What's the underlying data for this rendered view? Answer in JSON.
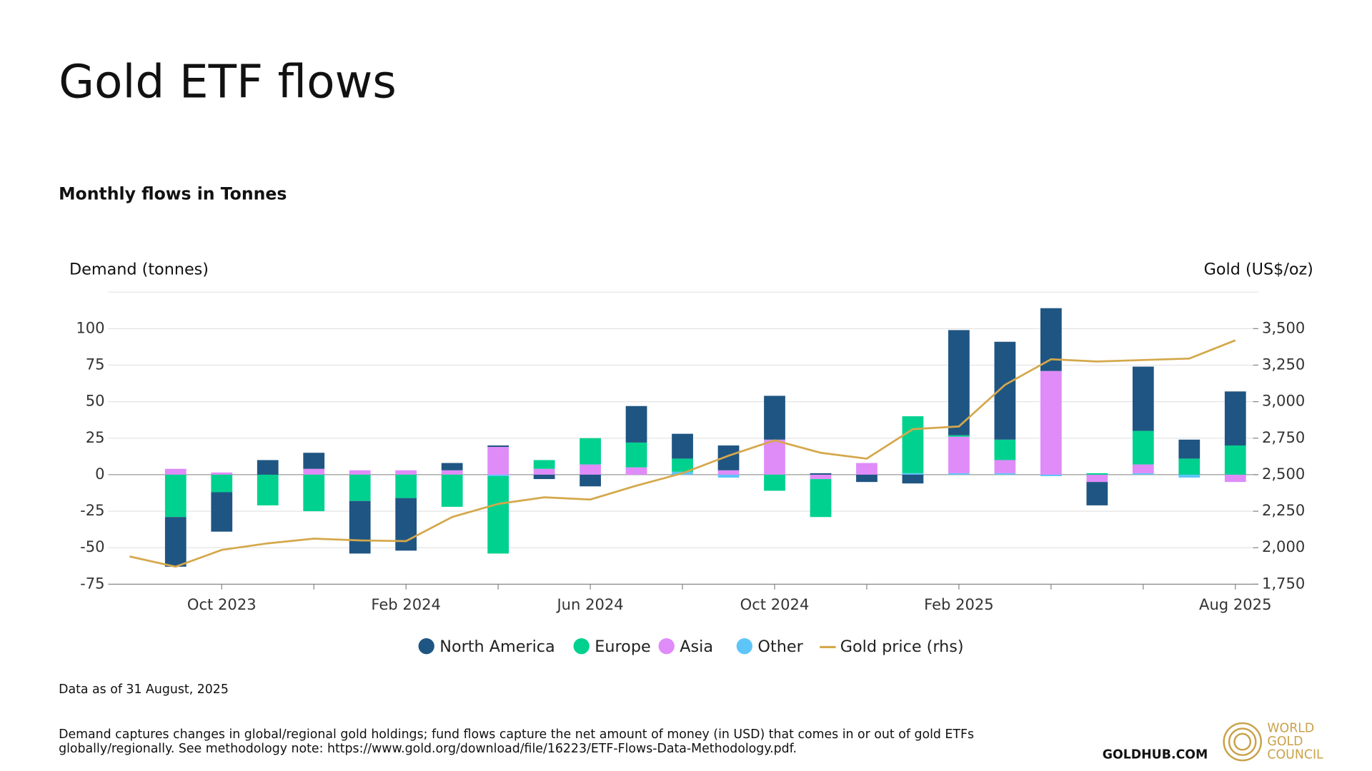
{
  "chart_data": {
    "type": "bar",
    "stacked": true,
    "title": "Gold ETF flows",
    "subtitle": "Monthly flows in Tonnes",
    "ylabel": "Demand (tonnes)",
    "y2label": "Gold (US$/oz)",
    "categories": [
      null,
      null,
      "Oct 2023",
      null,
      null,
      null,
      "Feb 2024",
      null,
      null,
      null,
      "Jun 2024",
      null,
      null,
      null,
      "Oct 2024",
      null,
      null,
      null,
      "Feb 2025",
      null,
      null,
      null,
      null,
      null,
      "Aug 2025"
    ],
    "series": [
      {
        "name": "North America",
        "color": "#1f5582",
        "values": [
          null,
          -34,
          -27,
          10,
          11,
          -36,
          -36,
          5,
          1,
          -3,
          -8,
          25,
          17,
          17,
          30,
          1,
          -5,
          -6,
          72,
          67,
          43,
          -16,
          44,
          13,
          37
        ]
      },
      {
        "name": "Europe",
        "color": "#00d18f",
        "values": [
          null,
          -29,
          -12,
          -21,
          -25,
          -18,
          -16,
          -22,
          -53,
          6,
          18,
          17,
          9,
          0,
          -11,
          -26,
          0,
          39,
          1,
          14,
          0,
          1,
          23,
          11,
          20
        ]
      },
      {
        "name": "Asia",
        "color": "#df8cf9",
        "values": [
          null,
          4,
          1.5,
          0,
          4,
          3,
          3,
          3,
          19,
          4,
          7,
          5,
          0,
          3,
          24,
          -3,
          8,
          0,
          25,
          9,
          71,
          -5,
          6,
          0,
          -5
        ]
      },
      {
        "name": "Other",
        "color": "#5ec5f9",
        "values": [
          null,
          0,
          0,
          0,
          0,
          0,
          0,
          0,
          -1,
          0,
          0,
          0,
          2,
          -2,
          0,
          0,
          0,
          1,
          1,
          1,
          -1,
          0,
          1,
          -2,
          0
        ]
      },
      {
        "name": "Gold price (rhs)",
        "color": "#d4a84b",
        "axis": "y2",
        "type": "line",
        "values": [
          1940,
          1870,
          1985,
          2030,
          2062,
          2050,
          2045,
          2210,
          2300,
          2345,
          2330,
          2425,
          2510,
          2630,
          2735,
          2650,
          2610,
          2812,
          2830,
          3115,
          3290,
          3275,
          3285,
          3295,
          3420
        ]
      }
    ],
    "ylim": [
      -75,
      125
    ],
    "yticks": [
      -75,
      -50,
      -25,
      0,
      25,
      50,
      75,
      100
    ],
    "y2lim": [
      1750,
      3750
    ],
    "y2ticks": [
      {
        "value": 1750,
        "label": "1,750"
      },
      {
        "value": 2000,
        "label": "2,000"
      },
      {
        "value": 2250,
        "label": "2,250"
      },
      {
        "value": 2500,
        "label": "2,500"
      },
      {
        "value": 2750,
        "label": "2,750"
      },
      {
        "value": 3000,
        "label": "3,000"
      },
      {
        "value": 3250,
        "label": "3,250"
      },
      {
        "value": 3500,
        "label": "3,500"
      }
    ],
    "grid": true,
    "legend": "bottom",
    "note": "Data as of 31 August, 2025",
    "footnote": [
      "Demand captures changes in global/regional gold holdings; fund flows capture the net amount of money (in USD) that comes in or out of gold ETFs",
      "globally/regionally. See methodology note: https://www.gold.org/download/file/16223/ETF-Flows-Data-Methodology.pdf."
    ],
    "source": "GOLDHUB.COM",
    "logo": [
      "WORLD",
      "GOLD",
      "COUNCIL"
    ]
  }
}
